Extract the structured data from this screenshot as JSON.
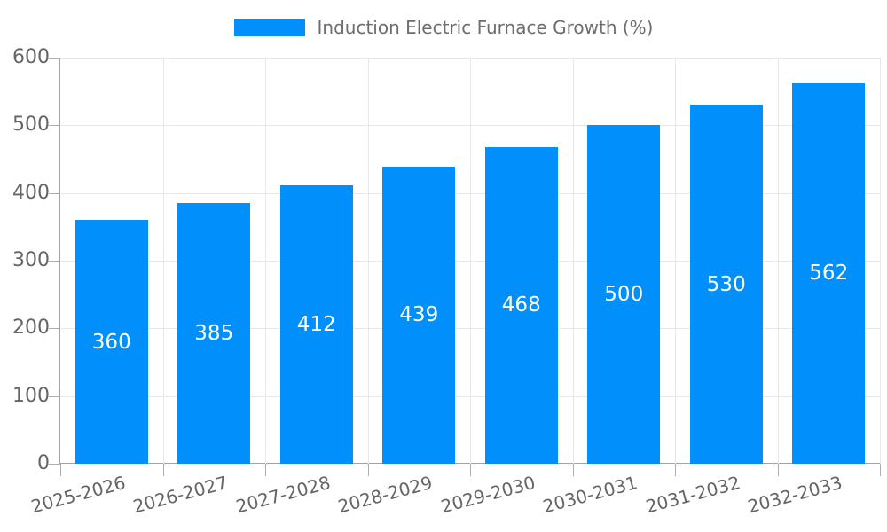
{
  "chart_data": {
    "type": "bar",
    "legend": "Induction Electric Furnace Growth (%)",
    "legend_position": "top-center",
    "categories": [
      "2025-2026",
      "2026-2027",
      "2027-2028",
      "2028-2029",
      "2029-2030",
      "2030-2031",
      "2031-2032",
      "2032-2033"
    ],
    "values": [
      360,
      385,
      412,
      439,
      468,
      500,
      530,
      562
    ],
    "title": "",
    "xlabel": "",
    "ylabel": "",
    "ylim": [
      0,
      600
    ],
    "yticks": [
      0,
      100,
      200,
      300,
      400,
      500,
      600
    ],
    "grid": true,
    "colors": {
      "bar": "#008FFB",
      "value_label": "#ffffff",
      "axis_label": "#656565",
      "legend_text": "#6a6e71",
      "gridline": "#e8e8e8",
      "axis_line": "#a3a3a3",
      "tick": "#adadad",
      "background": "#ffffff"
    }
  }
}
